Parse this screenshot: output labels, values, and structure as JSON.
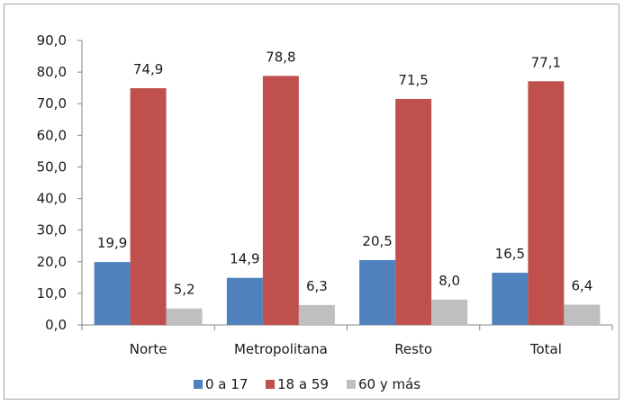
{
  "chart_data": {
    "type": "bar",
    "title": "",
    "xlabel": "",
    "ylabel": "",
    "categories": [
      "Norte",
      "Metropolitana",
      "Resto",
      "Total"
    ],
    "series": [
      {
        "name": "0 a 17",
        "color": "#4f81bd",
        "values": [
          19.9,
          14.9,
          20.5,
          16.5
        ],
        "labels": [
          "19,9",
          "14,9",
          "20,5",
          "16,5"
        ]
      },
      {
        "name": "18 a 59",
        "color": "#c0504d",
        "values": [
          74.9,
          78.8,
          71.5,
          77.1
        ],
        "labels": [
          "74,9",
          "78,8",
          "71,5",
          "77,1"
        ]
      },
      {
        "name": "60 y más",
        "color": "#bfbfbf",
        "values": [
          5.2,
          6.3,
          8.0,
          6.4
        ],
        "labels": [
          "5,2",
          "6,3",
          "8,0",
          "6,4"
        ]
      }
    ],
    "ylim": [
      0,
      90
    ],
    "yticks": [
      "0,0",
      "10,0",
      "20,0",
      "30,0",
      "40,0",
      "50,0",
      "60,0",
      "70,0",
      "80,0",
      "90,0"
    ],
    "grid": false,
    "legend_position": "bottom"
  }
}
